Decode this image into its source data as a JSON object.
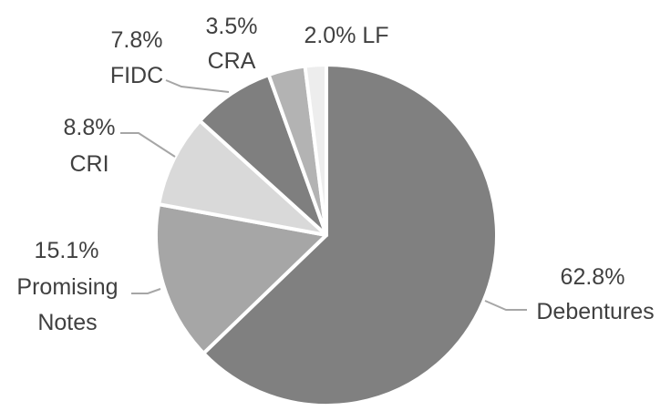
{
  "chart_data": {
    "type": "pie",
    "title": "",
    "slices": [
      {
        "label": "Debentures",
        "value": 62.8,
        "value_label": "62.8%",
        "color": "#808080"
      },
      {
        "label": "Promising Notes",
        "value": 15.1,
        "value_label": "15.1%",
        "color": "#a6a6a6"
      },
      {
        "label": "CRI",
        "value": 8.8,
        "value_label": "8.8%",
        "color": "#d9d9d9"
      },
      {
        "label": "FIDC",
        "value": 7.8,
        "value_label": "7.8%",
        "color": "#7f7f7f"
      },
      {
        "label": "CRA",
        "value": 3.5,
        "value_label": "3.5%",
        "color": "#b3b3b3"
      },
      {
        "label": "LF",
        "value": 2.0,
        "value_label": "2.0%",
        "color": "#ededed"
      }
    ],
    "start_angle": "12 o'clock",
    "direction": "clockwise",
    "legend": "none (labels next to slices with leader lines)"
  }
}
